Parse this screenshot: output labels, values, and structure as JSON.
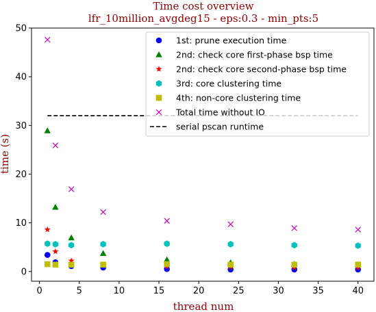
{
  "chart_data": {
    "type": "scatter",
    "title": "Time cost overview",
    "subtitle": "lfr_10million_avgdeg15 - eps:0.3 - min_pts:5",
    "xlabel": "thread num",
    "ylabel": "time (s)",
    "xlim": [
      -1,
      42
    ],
    "ylim": [
      -2,
      50
    ],
    "xticks": [
      0,
      5,
      10,
      15,
      20,
      25,
      30,
      35,
      40
    ],
    "yticks": [
      0,
      10,
      20,
      30,
      40,
      50
    ],
    "grid": false,
    "legend_position": "top-right",
    "series": [
      {
        "name": "1st: prune execution time",
        "marker": "circle",
        "color": "#0000ff",
        "x": [
          1,
          2,
          4,
          8,
          16,
          24,
          32,
          40
        ],
        "y": [
          3.4,
          1.9,
          1.1,
          0.8,
          0.5,
          0.4,
          0.4,
          0.4
        ]
      },
      {
        "name": "2nd: check core first-phase bsp time",
        "marker": "triangle",
        "color": "#008000",
        "x": [
          1,
          2,
          4,
          8,
          16,
          24,
          32,
          40
        ],
        "y": [
          28.9,
          13.2,
          6.9,
          3.7,
          2.4,
          1.8,
          1.5,
          1.4
        ]
      },
      {
        "name": "2nd: check core second-phase bsp time",
        "marker": "star",
        "color": "#ff0000",
        "x": [
          1,
          2,
          4,
          8,
          16,
          24,
          32,
          40
        ],
        "y": [
          8.6,
          4.1,
          2.2,
          1.3,
          1.0,
          0.9,
          0.8,
          0.8
        ]
      },
      {
        "name": "3rd: core clustering time",
        "marker": "hexagon",
        "color": "#00bfbf",
        "x": [
          1,
          2,
          4,
          8,
          16,
          24,
          32,
          40
        ],
        "y": [
          5.7,
          5.6,
          5.4,
          5.6,
          5.7,
          5.6,
          5.4,
          5.3
        ]
      },
      {
        "name": "4th: non-core clustering time",
        "marker": "square",
        "color": "#bfbf00",
        "x": [
          1,
          2,
          4,
          8,
          16,
          24,
          32,
          40
        ],
        "y": [
          1.5,
          1.4,
          1.4,
          1.4,
          1.5,
          1.4,
          1.4,
          1.4
        ]
      },
      {
        "name": "Total time without IO",
        "marker": "x",
        "color": "#bf00bf",
        "x": [
          1,
          2,
          4,
          8,
          16,
          24,
          32,
          40
        ],
        "y": [
          47.6,
          25.9,
          16.9,
          12.2,
          10.4,
          9.7,
          8.9,
          8.6
        ]
      },
      {
        "name": "serial pscan runtime",
        "marker": "dashed-line",
        "color": "#000000",
        "x": [
          1,
          40
        ],
        "y": [
          32,
          32
        ]
      }
    ]
  }
}
